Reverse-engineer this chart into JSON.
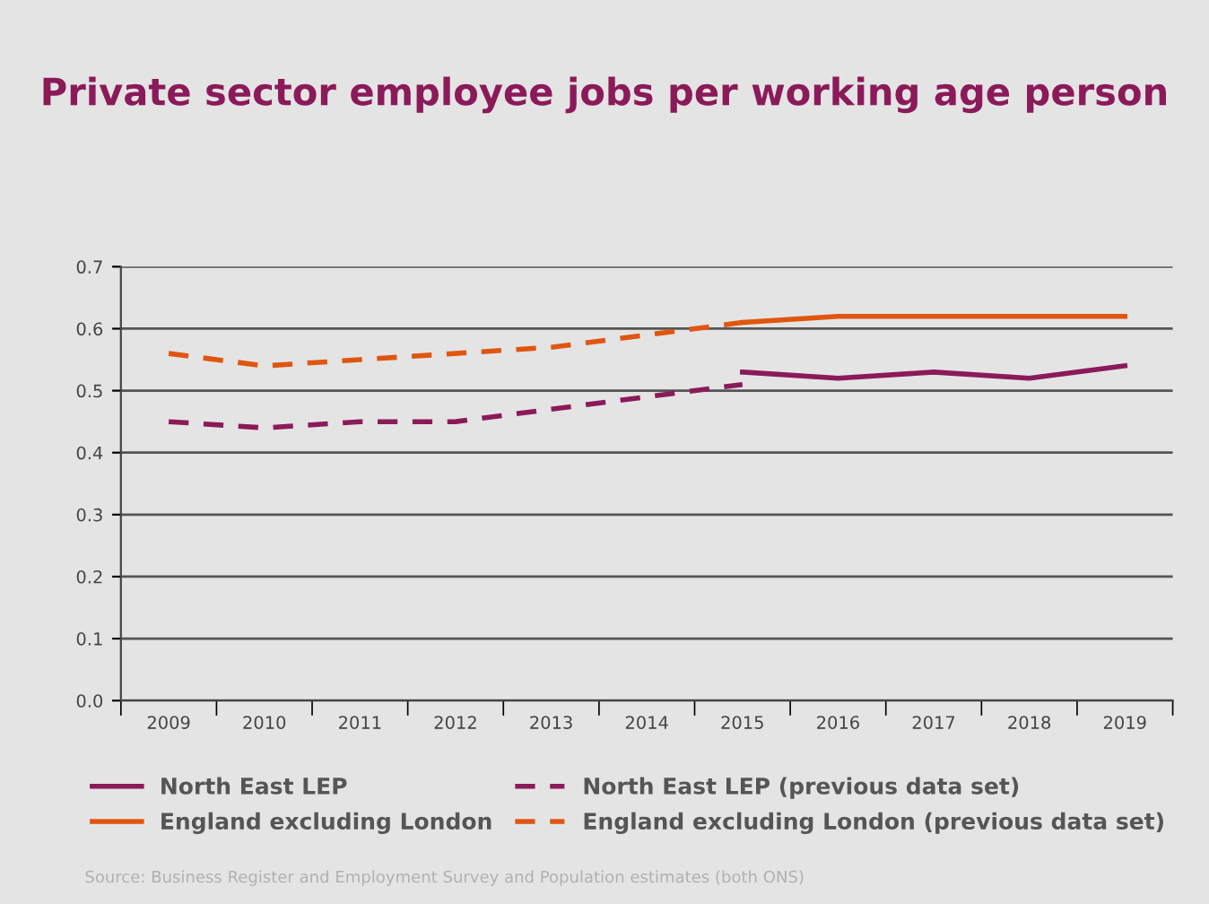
{
  "chart_data": {
    "type": "line",
    "title": "Private sector employee jobs per working age person",
    "categories": [
      "2009",
      "2010",
      "2011",
      "2012",
      "2013",
      "2014",
      "2015",
      "2016",
      "2017",
      "2018",
      "2019"
    ],
    "series": [
      {
        "name": "North East LEP",
        "color": "#8b1a5a",
        "line_style": "solid",
        "values": [
          null,
          null,
          null,
          null,
          null,
          null,
          0.53,
          0.52,
          0.53,
          0.52,
          0.54
        ]
      },
      {
        "name": "North East LEP (previous data set)",
        "color": "#8b1a5a",
        "line_style": "dashed",
        "values": [
          0.45,
          0.44,
          0.45,
          0.45,
          0.47,
          0.49,
          0.51,
          null,
          null,
          null,
          null
        ]
      },
      {
        "name": "England excluding London",
        "color": "#e0560f",
        "line_style": "solid",
        "values": [
          null,
          null,
          null,
          null,
          null,
          null,
          0.61,
          0.62,
          0.62,
          0.62,
          0.62
        ]
      },
      {
        "name": "England excluding London (previous data set)",
        "color": "#e0560f",
        "line_style": "dashed",
        "values": [
          0.56,
          0.54,
          0.55,
          0.56,
          0.57,
          0.59,
          0.61,
          null,
          null,
          null,
          null
        ]
      }
    ],
    "ylim": [
      0,
      0.7
    ],
    "yticks": [
      {
        "value": 0,
        "label": "0.0"
      },
      0.1,
      0.2,
      0.3,
      0.4,
      0.5,
      0.6,
      0.7
    ],
    "grid": "y",
    "legend": "bottom",
    "marker": "none",
    "annotations": [
      "Source: Business Register and Employment Survey and Population estimates (both ONS)"
    ]
  }
}
